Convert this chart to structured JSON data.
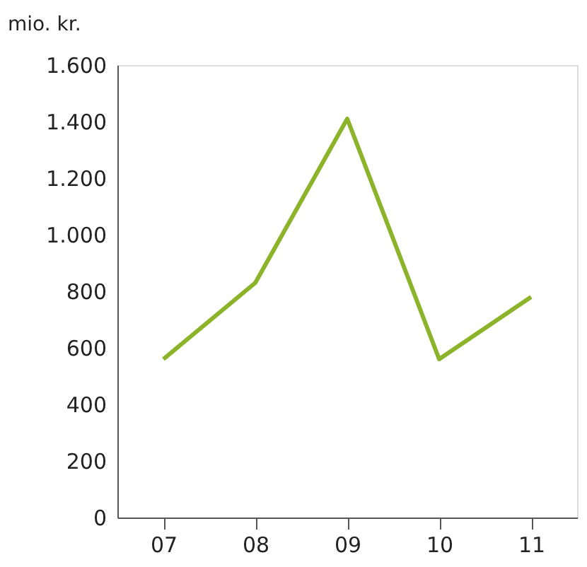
{
  "chart_data": {
    "type": "line",
    "ylabel": "mio. kr.",
    "categories": [
      "07",
      "08",
      "09",
      "10",
      "11"
    ],
    "series": [
      {
        "color": "#8cb42a",
        "values": [
          560,
          830,
          1410,
          560,
          780
        ]
      }
    ],
    "ylim": [
      0,
      1600
    ],
    "yticks": [
      0,
      200,
      400,
      600,
      800,
      {
        "value": 1000,
        "label": "1.000"
      },
      {
        "value": 1200,
        "label": "1.200"
      },
      {
        "value": 1400,
        "label": "1.400"
      },
      {
        "value": 1600,
        "label": "1.600"
      }
    ],
    "grid": false,
    "legend": false,
    "marker": "none",
    "line_style": "solid"
  }
}
